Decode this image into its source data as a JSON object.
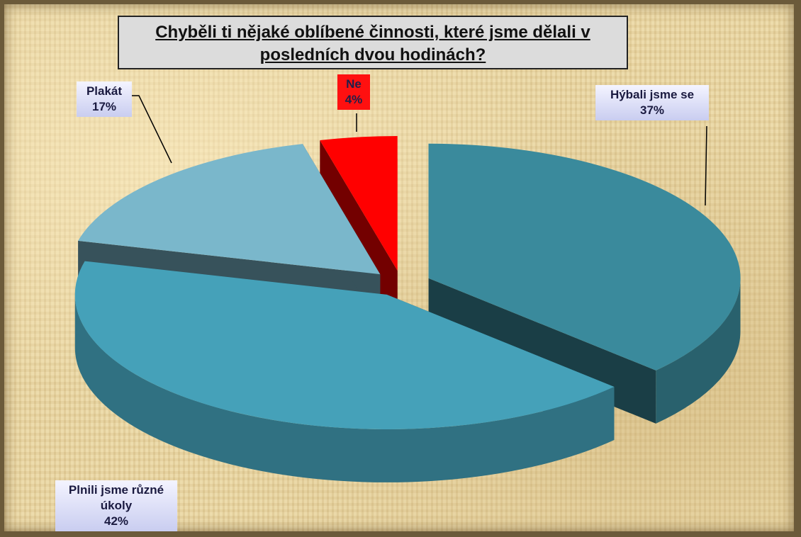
{
  "chart_data": {
    "type": "pie",
    "title": "Chyběli ti nějaké oblíbené činnosti, které jsme dělali v posledních dvou hodinách?",
    "categories": [
      "Hýbali jsme se",
      "Plnili jsme různé úkoly",
      "Plakát",
      "Ne"
    ],
    "values": [
      37,
      42,
      17,
      4
    ],
    "value_labels": [
      "37%",
      "42%",
      "17%",
      "4%"
    ],
    "colors": [
      "#3a8a9c",
      "#45a1b9",
      "#7ab7cb",
      "#ff0000"
    ]
  }
}
